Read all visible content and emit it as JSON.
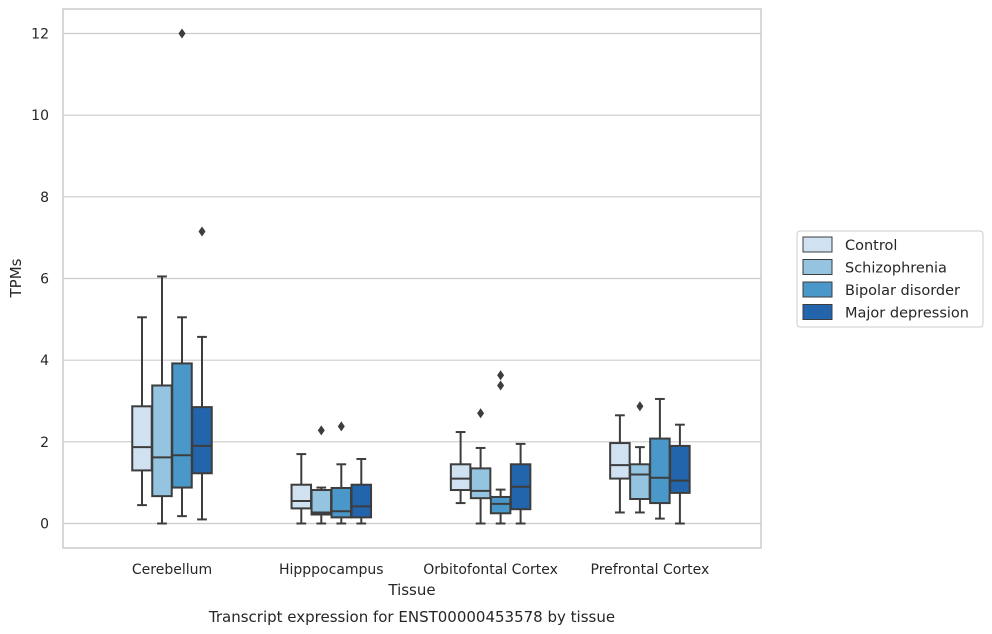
{
  "chart_data": {
    "type": "boxplot",
    "title": "Transcript expression for ENST00000453578 by tissue",
    "xlabel": "Tissue",
    "ylabel": "TPMs",
    "ylim": [
      -0.6,
      12.6
    ],
    "yticks": [
      0,
      2,
      4,
      6,
      8,
      10,
      12
    ],
    "grid": "horizontal",
    "legend_placement": "right",
    "categories": [
      "Cerebellum",
      "Hipppocampus",
      "Orbitofontal Cortex",
      "Prefrontal Cortex"
    ],
    "series": [
      {
        "name": "Control",
        "color": "#d0e1f2",
        "boxes": [
          {
            "whislo": 0.45,
            "q1": 1.3,
            "med": 1.87,
            "q3": 2.87,
            "whishi": 5.05,
            "fliers": []
          },
          {
            "whislo": 0.0,
            "q1": 0.37,
            "med": 0.55,
            "q3": 0.95,
            "whishi": 1.7,
            "fliers": []
          },
          {
            "whislo": 0.5,
            "q1": 0.82,
            "med": 1.1,
            "q3": 1.45,
            "whishi": 2.24,
            "fliers": []
          },
          {
            "whislo": 0.27,
            "q1": 1.1,
            "med": 1.43,
            "q3": 1.97,
            "whishi": 2.65,
            "fliers": []
          }
        ]
      },
      {
        "name": "Schizophrenia",
        "color": "#94c4df",
        "boxes": [
          {
            "whislo": 0.0,
            "q1": 0.67,
            "med": 1.62,
            "q3": 3.38,
            "whishi": 6.05,
            "fliers": []
          },
          {
            "whislo": 0.0,
            "q1": 0.22,
            "med": 0.27,
            "q3": 0.82,
            "whishi": 0.88,
            "fliers": [
              2.28
            ]
          },
          {
            "whislo": 0.0,
            "q1": 0.62,
            "med": 0.8,
            "q3": 1.35,
            "whishi": 1.85,
            "fliers": [
              2.7
            ]
          },
          {
            "whislo": 0.27,
            "q1": 0.6,
            "med": 1.2,
            "q3": 1.45,
            "whishi": 1.87,
            "fliers": [
              2.87
            ]
          }
        ]
      },
      {
        "name": "Bipolar disorder",
        "color": "#4a98c9",
        "boxes": [
          {
            "whislo": 0.18,
            "q1": 0.88,
            "med": 1.67,
            "q3": 3.92,
            "whishi": 5.05,
            "fliers": [
              12.0
            ]
          },
          {
            "whislo": 0.0,
            "q1": 0.15,
            "med": 0.3,
            "q3": 0.87,
            "whishi": 1.45,
            "fliers": [
              2.38
            ]
          },
          {
            "whislo": 0.0,
            "q1": 0.25,
            "med": 0.48,
            "q3": 0.65,
            "whishi": 0.83,
            "fliers": [
              3.38,
              3.63
            ]
          },
          {
            "whislo": 0.12,
            "q1": 0.5,
            "med": 1.12,
            "q3": 2.08,
            "whishi": 3.05,
            "fliers": []
          }
        ]
      },
      {
        "name": "Major depression",
        "color": "#2265ad",
        "boxes": [
          {
            "whislo": 0.1,
            "q1": 1.23,
            "med": 1.9,
            "q3": 2.85,
            "whishi": 4.57,
            "fliers": [
              7.15
            ]
          },
          {
            "whislo": 0.0,
            "q1": 0.15,
            "med": 0.42,
            "q3": 0.95,
            "whishi": 1.58,
            "fliers": []
          },
          {
            "whislo": 0.0,
            "q1": 0.35,
            "med": 0.9,
            "q3": 1.45,
            "whishi": 1.95,
            "fliers": []
          },
          {
            "whislo": 0.0,
            "q1": 0.75,
            "med": 1.05,
            "q3": 1.9,
            "whishi": 2.42,
            "fliers": []
          }
        ]
      }
    ]
  }
}
